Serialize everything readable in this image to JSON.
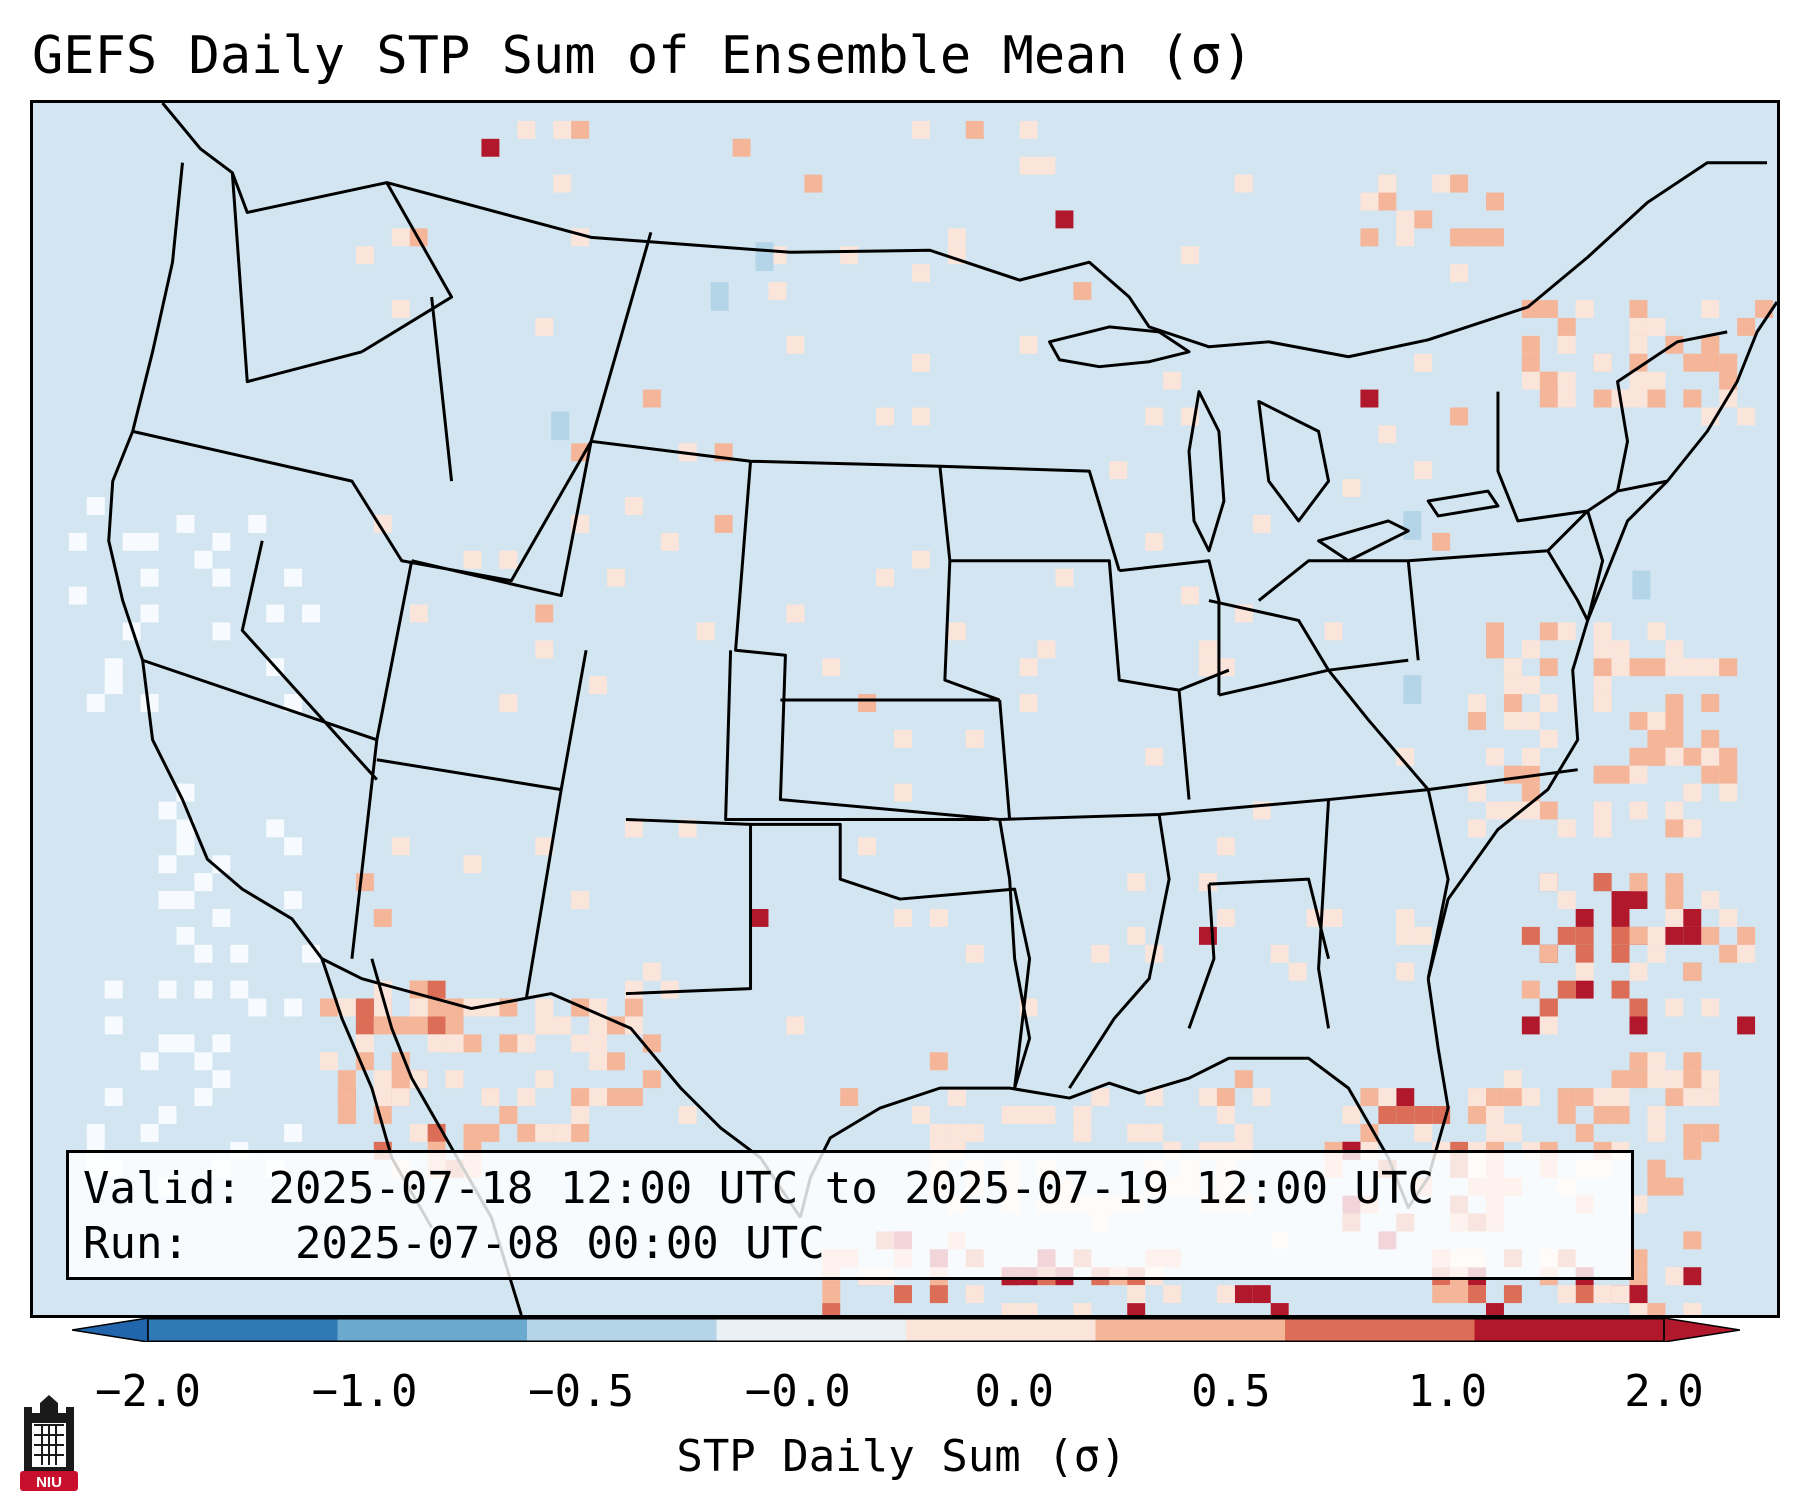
{
  "title": "GEFS Daily STP Sum of Ensemble Mean (σ)",
  "info": {
    "valid_label": "Valid:",
    "valid_value": "2025-07-18 12:00 UTC to 2025-07-19 12:00 UTC",
    "run_label": "Run:",
    "run_value": "2025-07-08 00:00 UTC"
  },
  "colorbar": {
    "label": "STP Daily Sum (σ)",
    "ticks": [
      "−2.0",
      "−1.0",
      "−0.5",
      "−0.0",
      "0.0",
      "0.5",
      "1.0",
      "2.0"
    ],
    "colors": [
      "#2f79b5",
      "#6ca9cf",
      "#b4d4e7",
      "#e9f1f6",
      "#fbe5da",
      "#f5b599",
      "#dc6e57",
      "#b2182b"
    ],
    "extend_low_color": "#2166ac",
    "extend_high_color": "#b2182b"
  },
  "map": {
    "background_color": "#d2e5f0",
    "region": "Contiguous United States"
  },
  "logo": {
    "text": "NIU",
    "color": "#c8102e"
  }
}
